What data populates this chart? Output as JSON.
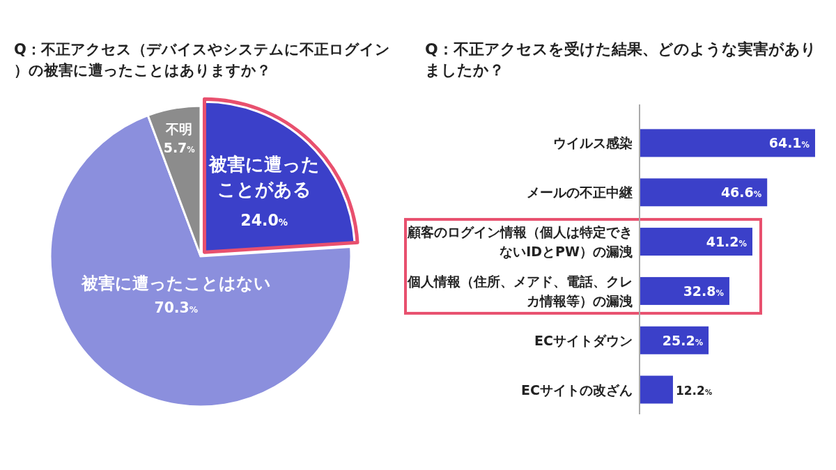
{
  "chart_data": [
    {
      "type": "pie",
      "title": "Q：不正アクセス（デバイスやシステムに不正ログイン）の被害に遭ったことはありますか？",
      "categories": [
        "被害に遭ったことがある",
        "被害に遭ったことはない",
        "不明"
      ],
      "values": [
        24.0,
        70.3,
        5.7
      ],
      "value_labels": [
        "24.0%",
        "70.3%",
        "5.7%"
      ],
      "colors": [
        "#3b40c9",
        "#8b8fdd",
        "#8c8c8c"
      ]
    },
    {
      "type": "bar",
      "orientation": "horizontal",
      "title": "Q：不正アクセスを受けた結果、どのような実害がありましたか？",
      "categories": [
        "ウイルス感染",
        "メールの不正中継",
        "顧客のログイン情報（個人は特定できないIDとPW）の漏洩",
        "個人情報（住所、メアド、電話、クレカ情報等）の漏洩",
        "ECサイトダウン",
        "ECサイトの改ざん"
      ],
      "values": [
        64.1,
        46.6,
        41.2,
        32.8,
        25.2,
        12.2
      ],
      "value_labels": [
        "64.1%",
        "46.6%",
        "41.2%",
        "32.8%",
        "25.2%",
        "12.2%"
      ],
      "color": "#3b40c9"
    }
  ]
}
